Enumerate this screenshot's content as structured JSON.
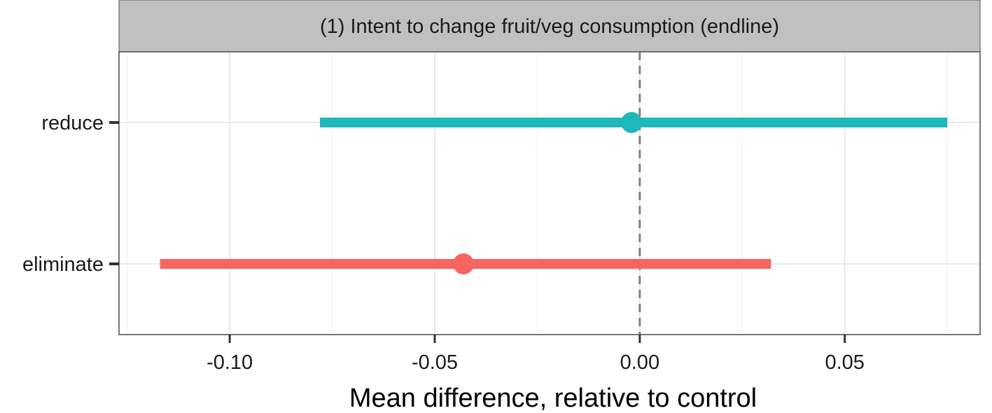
{
  "chart_data": {
    "type": "errorbar",
    "facet_title": "(1) Intent to change fruit/veg consumption (endline)",
    "xlabel": "Mean difference, relative to control",
    "ylabel": "",
    "xlim": [
      -0.127,
      0.083
    ],
    "x_ticks": [
      -0.1,
      -0.05,
      0.0,
      0.05
    ],
    "x_tick_labels": [
      "-0.10",
      "-0.05",
      "0.00",
      "0.05"
    ],
    "reference_line": 0,
    "grid": true,
    "legend": "none",
    "categories": [
      "reduce",
      "eliminate"
    ],
    "series": [
      {
        "category": "reduce",
        "estimate": -0.002,
        "ci_low": -0.078,
        "ci_high": 0.075,
        "color": "#1FB8BA"
      },
      {
        "category": "eliminate",
        "estimate": -0.043,
        "ci_low": -0.117,
        "ci_high": 0.032,
        "color": "#F8645F"
      }
    ]
  }
}
